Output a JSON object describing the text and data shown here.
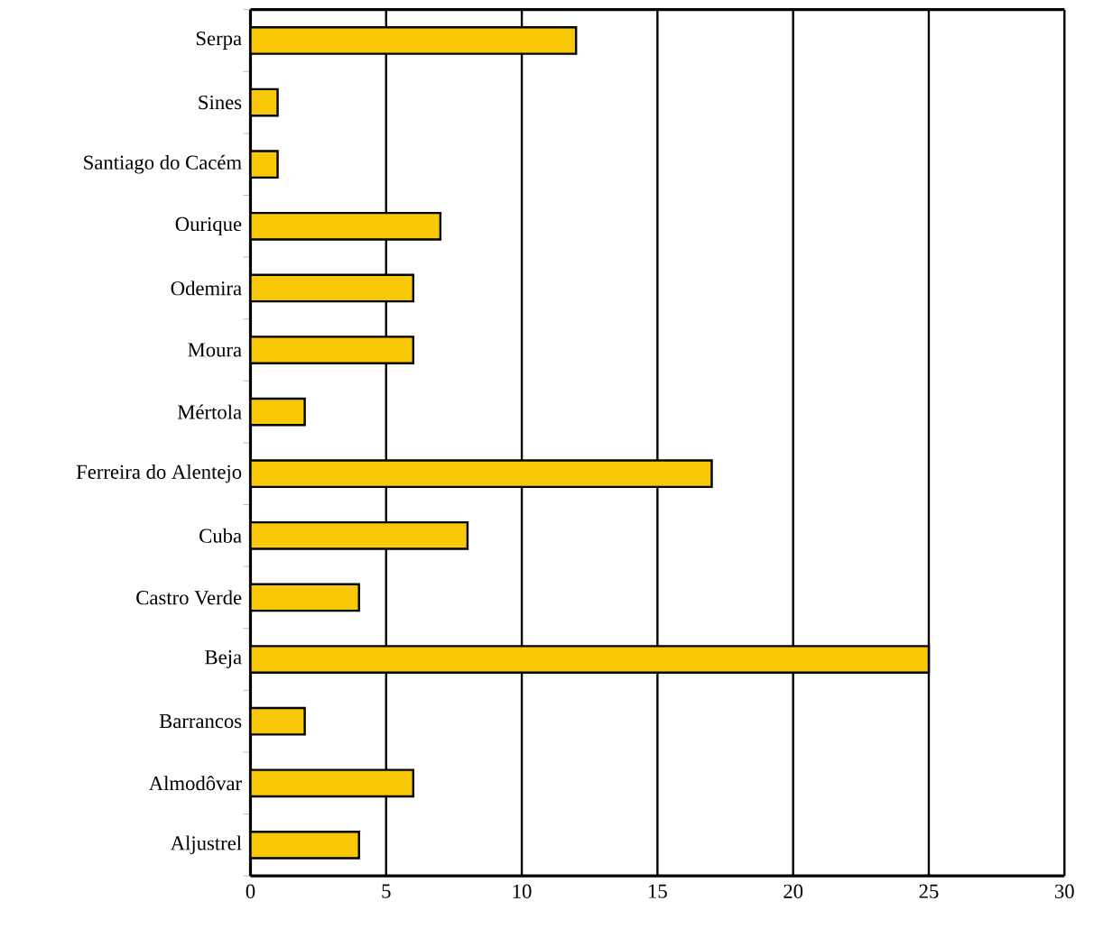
{
  "chart_data": {
    "type": "bar",
    "orientation": "horizontal",
    "categories": [
      "Serpa",
      "Sines",
      "Santiago do Cacém",
      "Ourique",
      "Odemira",
      "Moura",
      "Mértola",
      "Ferreira do Alentejo",
      "Cuba",
      "Castro Verde",
      "Beja",
      "Barrancos",
      "Almodôvar",
      "Aljustrel"
    ],
    "values": [
      12,
      1,
      1,
      7,
      6,
      6,
      2,
      17,
      8,
      4,
      25,
      2,
      6,
      4
    ],
    "color": "#f8c806",
    "xlim": [
      0,
      30
    ],
    "xticks": [
      0,
      5,
      10,
      15,
      20,
      25,
      30
    ],
    "grid": "x"
  }
}
